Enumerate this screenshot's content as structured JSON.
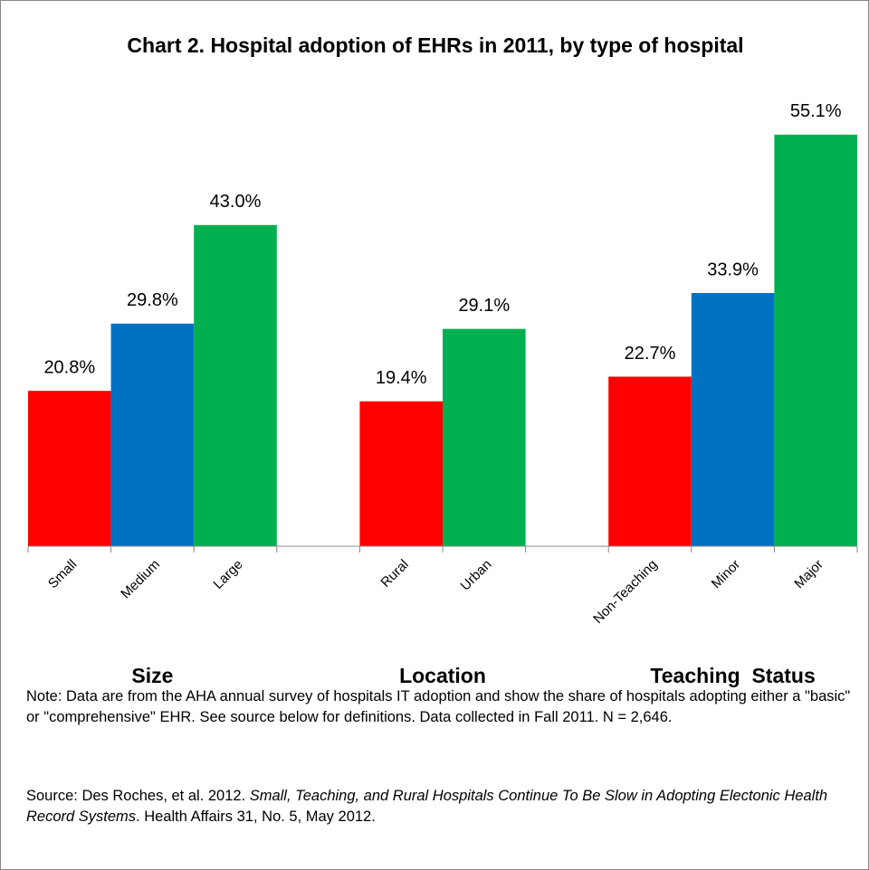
{
  "chart_data": {
    "type": "bar",
    "title": "Chart 2. Hospital adoption of EHRs in 2011, by type of hospital",
    "categories": [
      "Small",
      "Medium",
      "Large",
      null,
      "Rural",
      "Urban",
      null,
      "Non-Teaching",
      "Minor",
      "Major"
    ],
    "values": [
      20.8,
      29.8,
      43.0,
      null,
      19.4,
      29.1,
      null,
      22.7,
      33.9,
      55.1
    ],
    "value_labels": [
      "20.8%",
      "29.8%",
      "43.0%",
      null,
      "19.4%",
      "29.1%",
      null,
      "22.7%",
      "33.9%",
      "55.1%"
    ],
    "colors": [
      "#ff0000",
      "#0070c0",
      "#00b050",
      null,
      "#ff0000",
      "#00b050",
      null,
      "#ff0000",
      "#0070c0",
      "#00b050"
    ],
    "ylim": [
      0,
      60
    ],
    "groups": [
      "Size",
      "Location",
      "Teaching  Status"
    ]
  },
  "note": "Note: Data are from the AHA annual survey of hospitals IT adoption and show the share of hospitals adopting either a \"basic\" or \"comprehensive\" EHR. See source below for definitions. Data collected in Fall 2011. N = 2,646.",
  "source": {
    "prefix": "Source: Des Roches, et al. 2012.  ",
    "title": "Small, Teaching, and Rural Hospitals Continue To Be Slow in Adopting Electonic Health Record Systems",
    "suffix": ". Health Affairs  31, No. 5, May 2012."
  }
}
